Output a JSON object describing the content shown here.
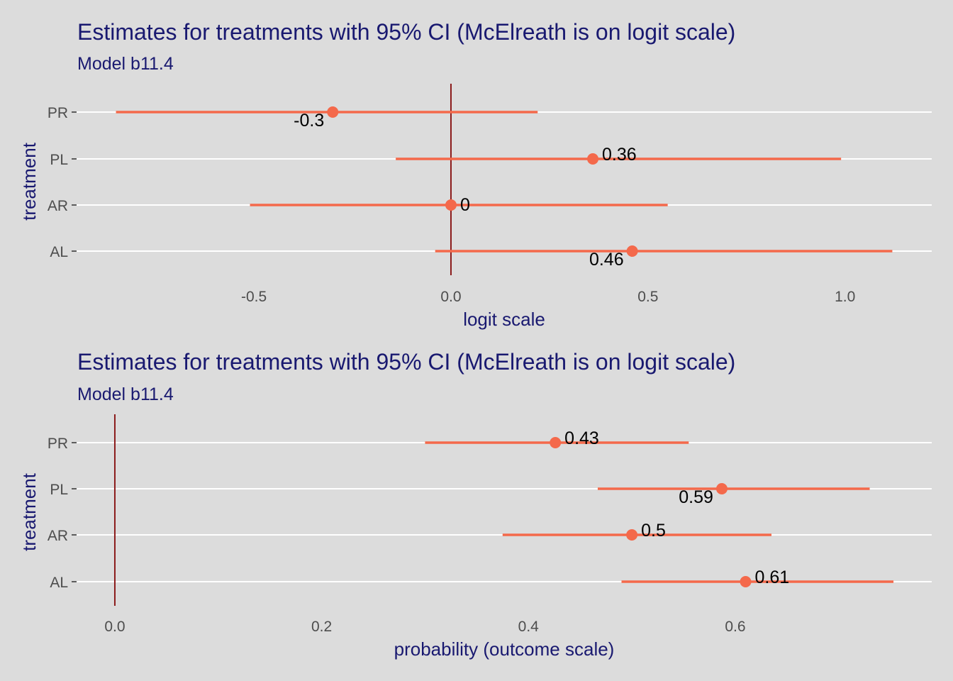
{
  "colors": {
    "background": "#dcdcdc",
    "gridline": "#ffffff",
    "text_title": "#191970",
    "tick_text": "#4d4d4d",
    "point_and_interval": "#f4694b",
    "reference_line": "#8b1a1a"
  },
  "chart_data": [
    {
      "type": "scatter",
      "title": "Estimates for treatments with 95% CI (McElreath is on logit scale)",
      "subtitle": "Model b11.4",
      "xlabel": "logit scale",
      "ylabel": "treatment",
      "xlim": [
        -0.95,
        1.22
      ],
      "x_ticks": [
        -0.5,
        0.0,
        0.5,
        1.0
      ],
      "x_tick_labels": [
        "-0.5",
        "0.0",
        "0.5",
        "1.0"
      ],
      "reference_x": 0.0,
      "categories": [
        "PR",
        "PL",
        "AR",
        "AL"
      ],
      "estimates": [
        -0.3,
        0.36,
        0.0,
        0.46
      ],
      "lower": [
        -0.85,
        -0.14,
        -0.51,
        -0.04
      ],
      "upper": [
        0.22,
        0.99,
        0.55,
        1.12
      ],
      "point_labels": [
        "-0.3",
        "0.36",
        "0",
        "0.46"
      ],
      "label_positions": [
        "below-left",
        "above-right",
        "right",
        "below-left"
      ],
      "grid": true
    },
    {
      "type": "scatter",
      "title": "Estimates for treatments with 95% CI (McElreath is on logit scale)",
      "subtitle": "Model b11.4",
      "xlabel": "probability (outcome scale)",
      "ylabel": "treatment",
      "xlim": [
        -0.037,
        0.79
      ],
      "x_ticks": [
        0.0,
        0.2,
        0.4,
        0.6
      ],
      "x_tick_labels": [
        "0.0",
        "0.2",
        "0.4",
        "0.6"
      ],
      "reference_x": 0.0,
      "categories": [
        "PR",
        "PL",
        "AR",
        "AL"
      ],
      "estimates": [
        0.426,
        0.587,
        0.5,
        0.61
      ],
      "lower": [
        0.3,
        0.467,
        0.375,
        0.49
      ],
      "upper": [
        0.555,
        0.73,
        0.635,
        0.753
      ],
      "point_labels": [
        "0.43",
        "0.59",
        "0.5",
        "0.61"
      ],
      "label_positions": [
        "above-right",
        "below-left",
        "above-right",
        "above-right"
      ],
      "grid": true
    }
  ]
}
